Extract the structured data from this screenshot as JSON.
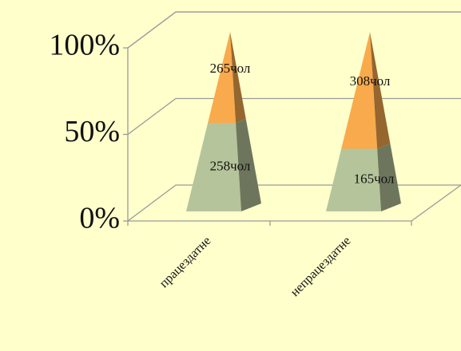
{
  "chart_data": {
    "type": "pyramid",
    "stacking": "percent",
    "categories": [
      "працездатне",
      "непрацездатне"
    ],
    "series": [
      {
        "color": "#b5c49a",
        "values": [
          258,
          165
        ],
        "value_labels": [
          "258чол",
          "165чол"
        ]
      },
      {
        "color": "#f9aa4c",
        "values": [
          265,
          308
        ],
        "value_labels": [
          "265чол",
          "308чол"
        ]
      }
    ],
    "ylim": [
      0,
      100
    ],
    "yticks": [
      {
        "value": 0,
        "label": "0%"
      },
      {
        "value": 50,
        "label": "50%"
      },
      {
        "value": 100,
        "label": "100%"
      }
    ],
    "grid": true
  }
}
